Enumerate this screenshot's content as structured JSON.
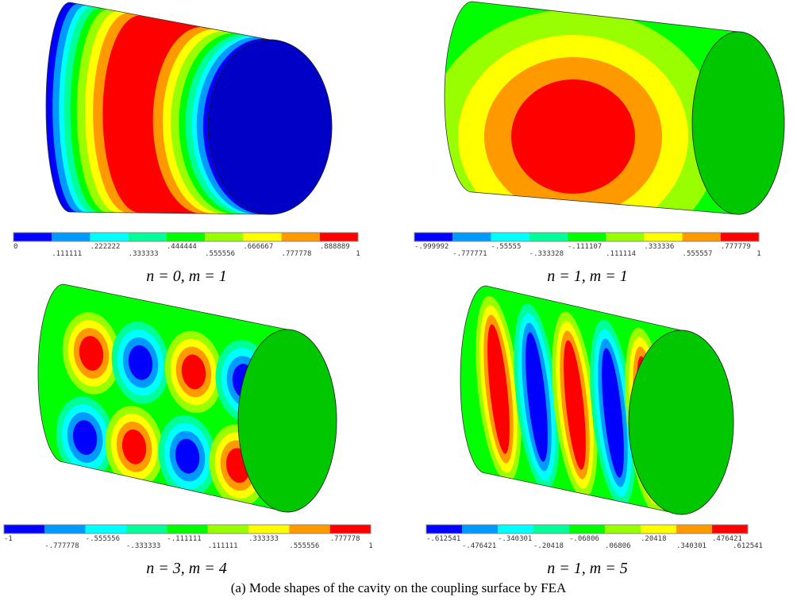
{
  "panels": [
    {
      "colorbar": {
        "colors": [
          "#0000ff",
          "#0099ff",
          "#00ffff",
          "#00ff99",
          "#00ff00",
          "#99ff00",
          "#ffff00",
          "#ff9900",
          "#ff0000"
        ],
        "labels": [
          "0",
          ".111111",
          ".222222",
          ".333333",
          ".444444",
          ".555556",
          ".666667",
          ".777778",
          ".888889",
          "1"
        ]
      },
      "caption": "n = 0, m = 1"
    },
    {
      "colorbar": {
        "colors": [
          "#0000ff",
          "#0099ff",
          "#00ffff",
          "#00ff99",
          "#00ff00",
          "#99ff00",
          "#ffff00",
          "#ff9900",
          "#ff0000"
        ],
        "labels": [
          "-.999992",
          "-.777771",
          "-.55555",
          "-.333328",
          "-.111107",
          ".111114",
          ".333336",
          ".555557",
          ".777779",
          "1"
        ]
      },
      "caption": "n = 1, m = 1"
    },
    {
      "colorbar": {
        "colors": [
          "#0000ff",
          "#0099ff",
          "#00ffff",
          "#00ff99",
          "#00ff00",
          "#99ff00",
          "#ffff00",
          "#ff9900",
          "#ff0000"
        ],
        "labels": [
          "-1",
          "-.777778",
          "-.555556",
          "-.333333",
          "-.111111",
          ".111111",
          ".333333",
          ".555556",
          ".777778",
          "1"
        ]
      },
      "caption": "n = 3, m = 4"
    },
    {
      "colorbar": {
        "colors": [
          "#0000ff",
          "#0099ff",
          "#00ffff",
          "#00ff99",
          "#00ff00",
          "#99ff00",
          "#ffff00",
          "#ff9900",
          "#ff0000"
        ],
        "labels": [
          "-.612541",
          "-.476421",
          "-.340301",
          "-.20418",
          "-.06806",
          ".06806",
          ".20418",
          ".340301",
          ".476421",
          ".612541"
        ]
      },
      "caption": "n = 1, m = 5"
    }
  ],
  "figure_caption": "(a) Mode shapes of the cavity on the coupling surface by FEA"
}
